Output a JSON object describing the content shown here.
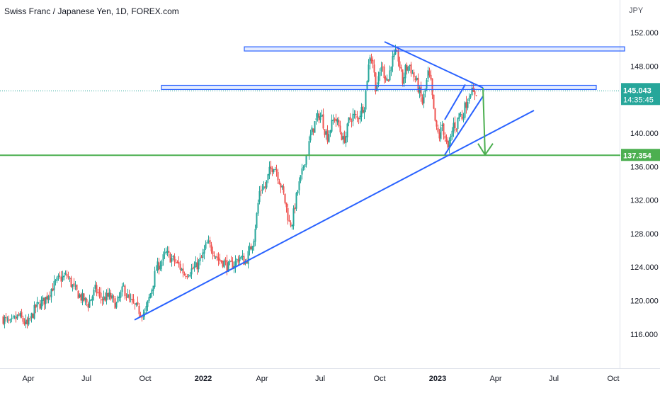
{
  "chart_data": {
    "type": "candlestick",
    "title": "Swiss Franc / Japanese Yen, 1D, FOREX.com",
    "currency": "JPY",
    "ylim": [
      112.5,
      155.5
    ],
    "y_ticks": [
      "152.000",
      "148.000",
      "140.000",
      "136.000",
      "132.000",
      "128.000",
      "124.000",
      "120.000",
      "116.000"
    ],
    "x_ticks": [
      "Apr",
      "Jul",
      "Oct",
      "2022",
      "Apr",
      "Jul",
      "Oct",
      "2023",
      "Apr",
      "Jul",
      "Oct"
    ],
    "grid": false,
    "last_price": "145.043",
    "countdown": "14:35:45",
    "support_level_label": "137.354",
    "colors": {
      "up": "#26a69a",
      "down": "#ef5350",
      "trendline": "#2962ff",
      "support": "#4caf50",
      "price_tag": "#26a69a",
      "axis_text": "#131722"
    },
    "price_path": [
      [
        0,
        118.0
      ],
      [
        12,
        117.2
      ],
      [
        24,
        118.2
      ],
      [
        36,
        117.0
      ],
      [
        48,
        119.2
      ],
      [
        60,
        120.0
      ],
      [
        70,
        121.4
      ],
      [
        80,
        122.5
      ],
      [
        92,
        123.0
      ],
      [
        102,
        121.4
      ],
      [
        112,
        120.4
      ],
      [
        122,
        119.6
      ],
      [
        132,
        121.3
      ],
      [
        142,
        120.2
      ],
      [
        152,
        120.5
      ],
      [
        162,
        119.5
      ],
      [
        172,
        121.5
      ],
      [
        180,
        120.0
      ],
      [
        188,
        119.3
      ],
      [
        196,
        118.6
      ],
      [
        202,
        118.4
      ],
      [
        206,
        119.6
      ],
      [
        212,
        121.5
      ],
      [
        218,
        123.8
      ],
      [
        224,
        124.5
      ],
      [
        232,
        125.6
      ],
      [
        240,
        125.0
      ],
      [
        250,
        124.2
      ],
      [
        258,
        123.2
      ],
      [
        266,
        123.6
      ],
      [
        274,
        124.0
      ],
      [
        282,
        125.0
      ],
      [
        290,
        126.8
      ],
      [
        298,
        126.1
      ],
      [
        306,
        124.9
      ],
      [
        314,
        124.6
      ],
      [
        320,
        124.0
      ],
      [
        328,
        124.4
      ],
      [
        336,
        125.2
      ],
      [
        344,
        124.6
      ],
      [
        352,
        126.4
      ],
      [
        356,
        127.6
      ],
      [
        360,
        130.2
      ],
      [
        364,
        133.0
      ],
      [
        368,
        133.6
      ],
      [
        372,
        133.5
      ],
      [
        378,
        135.4
      ],
      [
        384,
        136.2
      ],
      [
        388,
        135.5
      ],
      [
        394,
        133.8
      ],
      [
        398,
        132.6
      ],
      [
        402,
        131.0
      ],
      [
        406,
        129.2
      ],
      [
        410,
        129.4
      ],
      [
        414,
        131.4
      ],
      [
        418,
        133.2
      ],
      [
        424,
        135.2
      ],
      [
        428,
        136.9
      ],
      [
        432,
        137.8
      ],
      [
        436,
        139.6
      ],
      [
        442,
        141.2
      ],
      [
        448,
        142.1
      ],
      [
        452,
        141.9
      ],
      [
        456,
        140.4
      ],
      [
        460,
        139.6
      ],
      [
        464,
        140.6
      ],
      [
        470,
        141.9
      ],
      [
        476,
        140.8
      ],
      [
        482,
        139.1
      ],
      [
        486,
        139.7
      ],
      [
        490,
        141.4
      ],
      [
        496,
        142.1
      ],
      [
        502,
        141.7
      ],
      [
        508,
        142.8
      ],
      [
        512,
        143.4
      ],
      [
        516,
        146.6
      ],
      [
        520,
        149.4
      ],
      [
        524,
        148.4
      ],
      [
        528,
        145.6
      ],
      [
        532,
        146.2
      ],
      [
        536,
        148.1
      ],
      [
        540,
        147.1
      ],
      [
        546,
        146.3
      ],
      [
        550,
        148.5
      ],
      [
        556,
        149.3
      ],
      [
        560,
        148.9
      ],
      [
        566,
        146.1
      ],
      [
        570,
        147.6
      ],
      [
        576,
        148.1
      ],
      [
        580,
        147.1
      ],
      [
        586,
        146.0
      ],
      [
        590,
        144.8
      ],
      [
        594,
        143.6
      ],
      [
        598,
        145.2
      ],
      [
        602,
        147.1
      ],
      [
        606,
        145.9
      ],
      [
        610,
        142.5
      ],
      [
        614,
        140.3
      ],
      [
        618,
        139.6
      ],
      [
        622,
        141.0
      ],
      [
        626,
        139.5
      ],
      [
        630,
        137.9
      ],
      [
        634,
        139.4
      ],
      [
        638,
        141.1
      ],
      [
        642,
        140.8
      ],
      [
        646,
        142.4
      ],
      [
        650,
        141.9
      ],
      [
        654,
        143.1
      ],
      [
        658,
        144.1
      ],
      [
        662,
        145.1
      ],
      [
        666,
        144.6
      ],
      [
        670,
        145.0
      ]
    ],
    "drawings": {
      "resistance_zone_top": {
        "y_range": [
          149.8,
          150.3
        ],
        "x_range": [
          "2022-03",
          "2023-10"
        ]
      },
      "resistance_zone_mid": {
        "y_range": [
          145.2,
          145.7
        ],
        "x_range": [
          "2021-12",
          "2023-09"
        ]
      },
      "support_line": {
        "y": 137.354
      },
      "long_trendline": {
        "from": [
          "2021-09",
          117.7
        ],
        "to": [
          "2023-06",
          142.7
        ]
      },
      "descending_trendline": {
        "from": [
          "2022-09",
          150.9
        ],
        "to": [
          "2023-03",
          145.4
        ]
      },
      "rising_channel_upper": {
        "from": [
          "2023-01",
          141.6
        ],
        "to": [
          "2023-02",
          145.8
        ]
      },
      "rising_channel_lower": {
        "from": [
          "2023-01",
          137.4
        ],
        "to": [
          "2023-03",
          144.4
        ]
      },
      "projection_arrow": {
        "from": [
          "2023-03",
          145.4
        ],
        "to": [
          "2023-03",
          137.4
        ]
      }
    }
  }
}
